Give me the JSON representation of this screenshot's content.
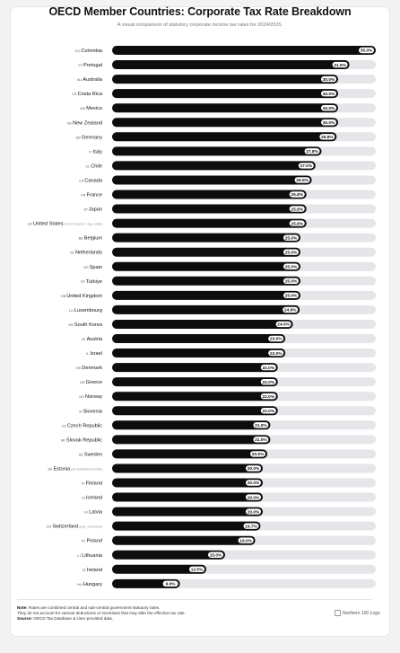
{
  "title": "OECD Member Countries: Corporate Tax Rate Breakdown",
  "subtitle": "A visual comparison of statutory corporate income tax rates for 2024/2025.",
  "footer": {
    "note_label": "Note:",
    "note_line1": "Rates are combined central and sub-central government statutory rates.",
    "note_line2": "They do not account for various deductions or incentives that may alter the effective tax rate.",
    "source_label": "Source:",
    "source_text": "OECD Tax Database & User-provided data."
  },
  "logo_alt": "Northern 100 Logo",
  "colors": {
    "bar": "#0d0d0d",
    "track": "#e6e6ea",
    "pill": "#ffffff"
  },
  "chart_data": {
    "type": "bar",
    "orientation": "horizontal",
    "title": "OECD Member Countries: Corporate Tax Rate Breakdown",
    "xlim": [
      0,
      35
    ],
    "value_suffix": "%",
    "rows": [
      {
        "code": "CO",
        "country": "Colombia",
        "note": "",
        "value": 35.0
      },
      {
        "code": "PT",
        "country": "Portugal",
        "note": "",
        "value": 31.5
      },
      {
        "code": "AU",
        "country": "Australia",
        "note": "",
        "value": 30.0
      },
      {
        "code": "CR",
        "country": "Costa Rica",
        "note": "",
        "value": 30.0
      },
      {
        "code": "MX",
        "country": "Mexico",
        "note": "",
        "value": 30.0
      },
      {
        "code": "NZ",
        "country": "New Zealand",
        "note": "",
        "value": 30.0
      },
      {
        "code": "DE",
        "country": "Germany",
        "note": "",
        "value": 29.8
      },
      {
        "code": "IT",
        "country": "Italy",
        "note": "",
        "value": 27.8
      },
      {
        "code": "CL",
        "country": "Chile",
        "note": "",
        "value": 27.0
      },
      {
        "code": "CA",
        "country": "Canada",
        "note": "",
        "value": 26.5
      },
      {
        "code": "FR",
        "country": "France",
        "note": "",
        "value": 25.8
      },
      {
        "code": "JP",
        "country": "Japan",
        "note": "",
        "value": 25.8
      },
      {
        "code": "US",
        "country": "United States",
        "note": "(21% Federal + avg. state)",
        "value": 25.8
      },
      {
        "code": "BE",
        "country": "Belgium",
        "note": "",
        "value": 25.0
      },
      {
        "code": "NL",
        "country": "Netherlands",
        "note": "",
        "value": 25.0
      },
      {
        "code": "ES",
        "country": "Spain",
        "note": "",
        "value": 25.0
      },
      {
        "code": "TR",
        "country": "Türkiye",
        "note": "",
        "value": 25.0
      },
      {
        "code": "GB",
        "country": "United Kingdom",
        "note": "",
        "value": 25.0
      },
      {
        "code": "LU",
        "country": "Luxembourg",
        "note": "",
        "value": 24.9
      },
      {
        "code": "KR",
        "country": "South Korea",
        "note": "",
        "value": 24.0
      },
      {
        "code": "AT",
        "country": "Austria",
        "note": "",
        "value": 23.0
      },
      {
        "code": "IL",
        "country": "Israel",
        "note": "",
        "value": 23.0
      },
      {
        "code": "DK",
        "country": "Denmark",
        "note": "",
        "value": 22.0
      },
      {
        "code": "GR",
        "country": "Greece",
        "note": "",
        "value": 22.0
      },
      {
        "code": "NO",
        "country": "Norway",
        "note": "",
        "value": 22.0
      },
      {
        "code": "SI",
        "country": "Slovenia",
        "note": "",
        "value": 22.0
      },
      {
        "code": "CZ",
        "country": "Czech Republic",
        "note": "",
        "value": 21.0
      },
      {
        "code": "SK",
        "country": "Slovak Republic",
        "note": "",
        "value": 21.0
      },
      {
        "code": "SE",
        "country": "Sweden",
        "note": "",
        "value": 20.6
      },
      {
        "code": "EE",
        "country": "Estonia",
        "note": "(on distributed profits)",
        "value": 20.0
      },
      {
        "code": "FI",
        "country": "Finland",
        "note": "",
        "value": 20.0
      },
      {
        "code": "IS",
        "country": "Iceland",
        "note": "",
        "value": 20.0
      },
      {
        "code": "LV",
        "country": "Latvia",
        "note": "",
        "value": 20.0
      },
      {
        "code": "CH",
        "country": "Switzerland",
        "note": "(avg. combined)",
        "value": 19.7
      },
      {
        "code": "PL",
        "country": "Poland",
        "note": "",
        "value": 19.0
      },
      {
        "code": "LT",
        "country": "Lithuania",
        "note": "",
        "value": 15.0
      },
      {
        "code": "IE",
        "country": "Ireland",
        "note": "",
        "value": 12.5
      },
      {
        "code": "HU",
        "country": "Hungary",
        "note": "",
        "value": 9.0
      }
    ]
  }
}
